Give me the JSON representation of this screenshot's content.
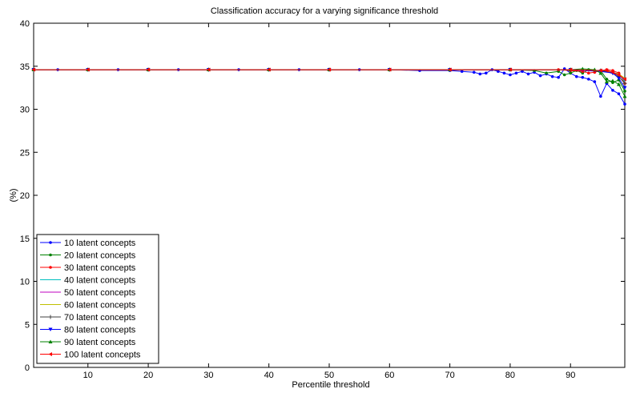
{
  "chart_data": {
    "type": "line",
    "title": "Classification accuracy for a varying significance threshold",
    "xlabel": "Percentile threshold",
    "ylabel": "(%)",
    "xlim": [
      1,
      99
    ],
    "ylim": [
      0,
      40
    ],
    "xticks": [
      10,
      20,
      30,
      40,
      50,
      60,
      70,
      80,
      90
    ],
    "yticks": [
      0,
      5,
      10,
      15,
      20,
      25,
      30,
      35,
      40
    ],
    "grid": false,
    "legend_position": "bottom-left",
    "series": [
      {
        "name": "10 latent concepts",
        "color": "#0000ff",
        "marker": "dot",
        "x": [
          1,
          5,
          10,
          15,
          20,
          25,
          30,
          35,
          40,
          45,
          50,
          55,
          60,
          65,
          70,
          72,
          74,
          75,
          76,
          77,
          78,
          79,
          80,
          81,
          82,
          83,
          84,
          85,
          86,
          87,
          88,
          89,
          90,
          91,
          92,
          93,
          94,
          95,
          96,
          97,
          98,
          99
        ],
        "y": [
          34.6,
          34.6,
          34.6,
          34.6,
          34.6,
          34.6,
          34.6,
          34.6,
          34.6,
          34.6,
          34.6,
          34.6,
          34.6,
          34.5,
          34.5,
          34.4,
          34.3,
          34.1,
          34.2,
          34.6,
          34.4,
          34.2,
          34.0,
          34.2,
          34.4,
          34.1,
          34.3,
          33.9,
          34.1,
          33.8,
          33.7,
          34.7,
          34.2,
          33.8,
          33.7,
          33.5,
          33.2,
          31.5,
          33.0,
          32.2,
          31.8,
          30.6
        ]
      },
      {
        "name": "20 latent concepts",
        "color": "#008000",
        "marker": "dot",
        "x": [
          1,
          10,
          20,
          30,
          40,
          50,
          60,
          70,
          80,
          84,
          86,
          88,
          89,
          90,
          91,
          92,
          93,
          94,
          95,
          96,
          97,
          98,
          99
        ],
        "y": [
          34.6,
          34.6,
          34.6,
          34.6,
          34.6,
          34.6,
          34.6,
          34.6,
          34.6,
          34.5,
          34.2,
          34.4,
          34.0,
          34.2,
          34.5,
          34.2,
          34.6,
          34.5,
          34.5,
          33.5,
          33.1,
          33.4,
          32.1
        ]
      },
      {
        "name": "30 latent concepts",
        "color": "#ff0000",
        "marker": "dot",
        "x": [
          1,
          10,
          20,
          30,
          40,
          50,
          60,
          70,
          80,
          88,
          90,
          92,
          93,
          94,
          95,
          96,
          97,
          98,
          99
        ],
        "y": [
          34.6,
          34.6,
          34.6,
          34.6,
          34.6,
          34.6,
          34.6,
          34.6,
          34.6,
          34.6,
          34.5,
          34.4,
          34.2,
          34.3,
          34.5,
          34.6,
          34.5,
          34.2,
          33.0
        ]
      },
      {
        "name": "40 latent concepts",
        "color": "#00bfbf",
        "marker": "none",
        "x": [
          1,
          90,
          96,
          98,
          99
        ],
        "y": [
          34.6,
          34.6,
          34.5,
          34.1,
          33.2
        ]
      },
      {
        "name": "50 latent concepts",
        "color": "#bf00bf",
        "marker": "none",
        "x": [
          1,
          90,
          96,
          98,
          99
        ],
        "y": [
          34.6,
          34.6,
          34.4,
          34.0,
          33.4
        ]
      },
      {
        "name": "60 latent concepts",
        "color": "#bfbf00",
        "marker": "none",
        "x": [
          1,
          90,
          96,
          98,
          99
        ],
        "y": [
          34.6,
          34.6,
          34.4,
          34.1,
          33.6
        ]
      },
      {
        "name": "70 latent concepts",
        "color": "#404040",
        "marker": "plus",
        "x": [
          1,
          10,
          20,
          30,
          40,
          50,
          60,
          70,
          80,
          90,
          95,
          97,
          98,
          99
        ],
        "y": [
          34.6,
          34.6,
          34.6,
          34.6,
          34.6,
          34.6,
          34.6,
          34.6,
          34.6,
          34.6,
          34.5,
          34.2,
          33.8,
          33.0
        ]
      },
      {
        "name": "80 latent concepts",
        "color": "#0000ff",
        "marker": "triangle-down",
        "x": [
          1,
          10,
          20,
          30,
          40,
          50,
          60,
          70,
          80,
          90,
          95,
          97,
          98,
          99
        ],
        "y": [
          34.6,
          34.6,
          34.6,
          34.6,
          34.6,
          34.6,
          34.6,
          34.6,
          34.6,
          34.6,
          34.4,
          34.2,
          33.6,
          32.5
        ]
      },
      {
        "name": "90 latent concepts",
        "color": "#008000",
        "marker": "triangle-up",
        "x": [
          1,
          10,
          20,
          30,
          40,
          50,
          60,
          70,
          80,
          90,
          92,
          94,
          95,
          96,
          97,
          98,
          99
        ],
        "y": [
          34.6,
          34.6,
          34.6,
          34.6,
          34.6,
          34.6,
          34.6,
          34.6,
          34.6,
          34.6,
          34.7,
          34.6,
          34.2,
          33.2,
          33.3,
          32.9,
          31.5
        ]
      },
      {
        "name": "100 latent concepts",
        "color": "#ff0000",
        "marker": "triangle-left",
        "x": [
          1,
          10,
          20,
          30,
          40,
          50,
          60,
          70,
          80,
          90,
          95,
          96,
          97,
          98,
          99
        ],
        "y": [
          34.6,
          34.6,
          34.6,
          34.6,
          34.6,
          34.6,
          34.6,
          34.6,
          34.6,
          34.6,
          34.5,
          34.5,
          34.3,
          34.0,
          33.5
        ]
      }
    ]
  }
}
